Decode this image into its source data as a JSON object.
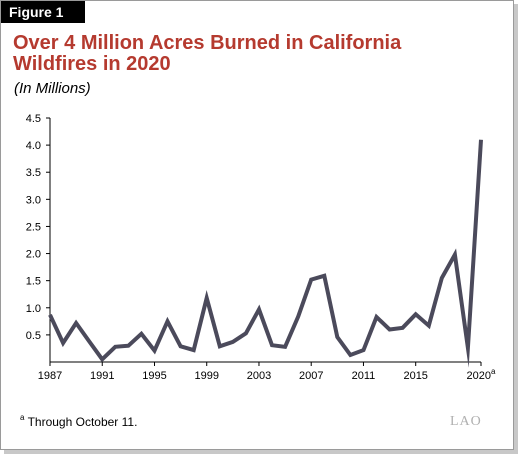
{
  "figure_label": "Figure 1",
  "title": "Over 4 Million Acres Burned in California Wildfires in 2020",
  "subtitle": "(In Millions)",
  "footnote": {
    "marker": "a",
    "text": "Through October 11."
  },
  "brand": "LAO",
  "colors": {
    "title": "#b53a2f",
    "line": "#4b4a5b",
    "axis": "#000000"
  },
  "chart_data": {
    "type": "line",
    "title": "Over 4 Million Acres Burned in California Wildfires in 2020",
    "subtitle": "(In Millions)",
    "xlabel": "",
    "ylabel": "",
    "ylim": [
      0,
      4.5
    ],
    "yticks": [
      0.5,
      1.0,
      1.5,
      2.0,
      2.5,
      3.0,
      3.5,
      4.0,
      4.5
    ],
    "ytick_labels": [
      "0.5",
      "1.0",
      "1.5",
      "2.0",
      "2.5",
      "3.0",
      "3.5",
      "4.0",
      "4.5"
    ],
    "xlim": [
      1987,
      2020
    ],
    "xticks": [
      1987,
      1991,
      1995,
      1999,
      2003,
      2007,
      2011,
      2015,
      2020
    ],
    "xtick_labels": [
      "1987",
      "1991",
      "1995",
      "1999",
      "2003",
      "2007",
      "2011",
      "2015",
      "2020"
    ],
    "xtick_superscript": {
      "2020": "a"
    },
    "grid": false,
    "legend": "none",
    "series": [
      {
        "x": [
          1987,
          1988,
          1989,
          1990,
          1991,
          1992,
          1993,
          1994,
          1995,
          1996,
          1997,
          1998,
          1999,
          2000,
          2001,
          2002,
          2003,
          2004,
          2005,
          2006,
          2007,
          2008,
          2009,
          2010,
          2011,
          2012,
          2013,
          2014,
          2015,
          2016,
          2017,
          2018,
          2019,
          2020
        ],
        "values": [
          0.87,
          0.35,
          0.72,
          0.38,
          0.05,
          0.28,
          0.3,
          0.52,
          0.21,
          0.75,
          0.29,
          0.22,
          1.18,
          0.29,
          0.37,
          0.53,
          0.97,
          0.31,
          0.28,
          0.84,
          1.52,
          1.59,
          0.46,
          0.13,
          0.22,
          0.83,
          0.6,
          0.63,
          0.88,
          0.67,
          1.55,
          1.98,
          0.26,
          4.1
        ]
      }
    ]
  }
}
